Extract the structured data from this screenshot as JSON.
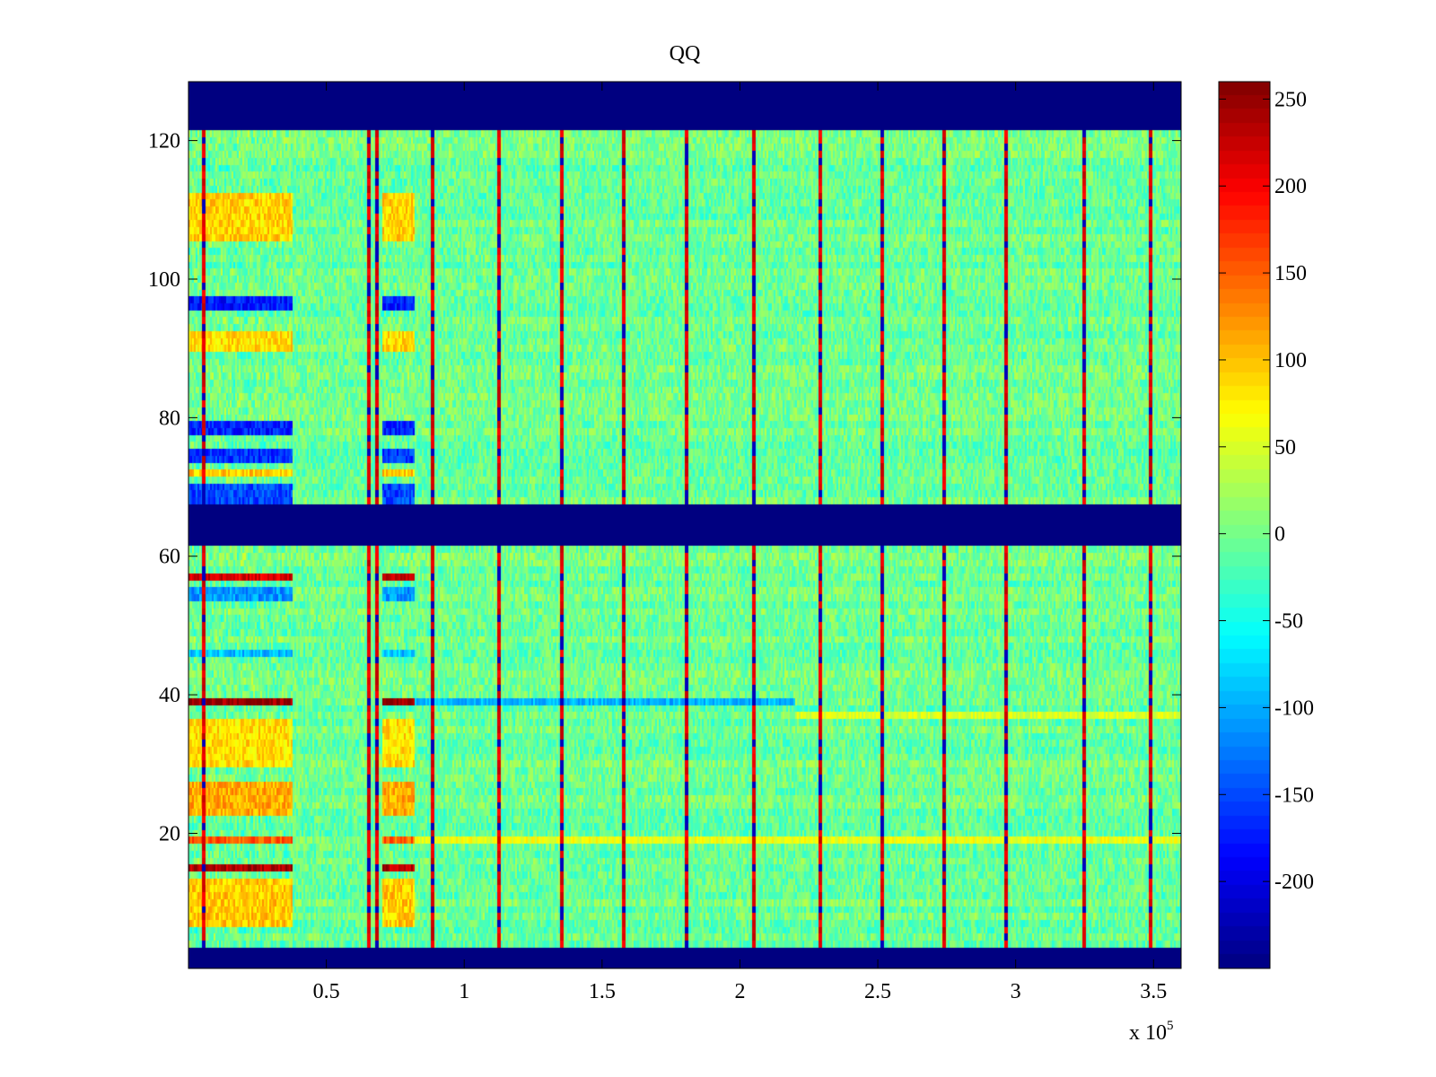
{
  "chart_data": {
    "type": "heatmap",
    "title": "QQ",
    "xlabel": "",
    "ylabel": "",
    "x_multiplier_label": {
      "prefix": "x 10",
      "exponent": "5"
    },
    "xlim": [
      0.0,
      3.6
    ],
    "ylim": [
      0.5,
      128.5
    ],
    "x_ticks": [
      0.5,
      1,
      1.5,
      2,
      2.5,
      3,
      3.5
    ],
    "x_tick_labels": [
      "0.5",
      "1",
      "1.5",
      "2",
      "2.5",
      "3",
      "3.5"
    ],
    "y_ticks": [
      20,
      40,
      60,
      80,
      100,
      120
    ],
    "y_tick_labels": [
      "20",
      "40",
      "60",
      "80",
      "100",
      "120"
    ],
    "colormap": "jet",
    "clim": [
      -250,
      260
    ],
    "colorbar_ticks": [
      250,
      200,
      150,
      100,
      50,
      0,
      -50,
      -100,
      -150,
      -200
    ],
    "colorbar_tick_labels": [
      "250",
      "200",
      "150",
      "100",
      "50",
      "0",
      "-50",
      "-100",
      "-150",
      "-200"
    ],
    "background_value": -5,
    "noise_amplitude": 32,
    "blank_row_bands": [
      {
        "from": 0.5,
        "to": 3.5,
        "value": -250
      },
      {
        "from": 61.5,
        "to": 67.5,
        "value": -250
      },
      {
        "from": 121.5,
        "to": 128.5,
        "value": -250
      }
    ],
    "vertical_stripe_x": [
      0.055,
      0.655,
      0.685,
      0.885,
      1.125,
      1.355,
      1.58,
      1.805,
      2.05,
      2.29,
      2.515,
      2.74,
      2.965,
      3.25,
      3.49
    ],
    "vertical_stripe_value": 230,
    "vertical_stripe_low_value": -220,
    "early_region_x": [
      [
        0.0,
        0.38
      ],
      [
        0.7,
        0.82
      ]
    ],
    "early_region_row_pattern": [
      {
        "rows": [
          7,
          13
        ],
        "value": 95
      },
      {
        "rows": [
          15,
          15
        ],
        "value": 235
      },
      {
        "rows": [
          19,
          19
        ],
        "value": 150
      },
      {
        "rows": [
          23,
          27
        ],
        "value": 110
      },
      {
        "rows": [
          30,
          36
        ],
        "value": 85
      },
      {
        "rows": [
          39,
          39
        ],
        "value": 250
      },
      {
        "rows": [
          46,
          46
        ],
        "value": -90
      },
      {
        "rows": [
          54,
          55
        ],
        "value": -110
      },
      {
        "rows": [
          57,
          57
        ],
        "value": 215
      },
      {
        "rows": [
          68,
          70
        ],
        "value": -150
      },
      {
        "rows": [
          72,
          72
        ],
        "value": 95
      },
      {
        "rows": [
          74,
          75
        ],
        "value": -160
      },
      {
        "rows": [
          78,
          79
        ],
        "value": -170
      },
      {
        "rows": [
          90,
          92
        ],
        "value": 85
      },
      {
        "rows": [
          96,
          97
        ],
        "value": -175
      },
      {
        "rows": [
          106,
          112
        ],
        "value": 90
      }
    ],
    "row39_tail": {
      "row": 39,
      "x": [
        0.82,
        2.2
      ],
      "value": -95
    },
    "row19_tail": {
      "row": 19,
      "x": [
        0.82,
        3.6
      ],
      "value": 60
    },
    "row37_tail": {
      "row": 37,
      "x": [
        2.2,
        3.6
      ],
      "value": 50
    }
  }
}
